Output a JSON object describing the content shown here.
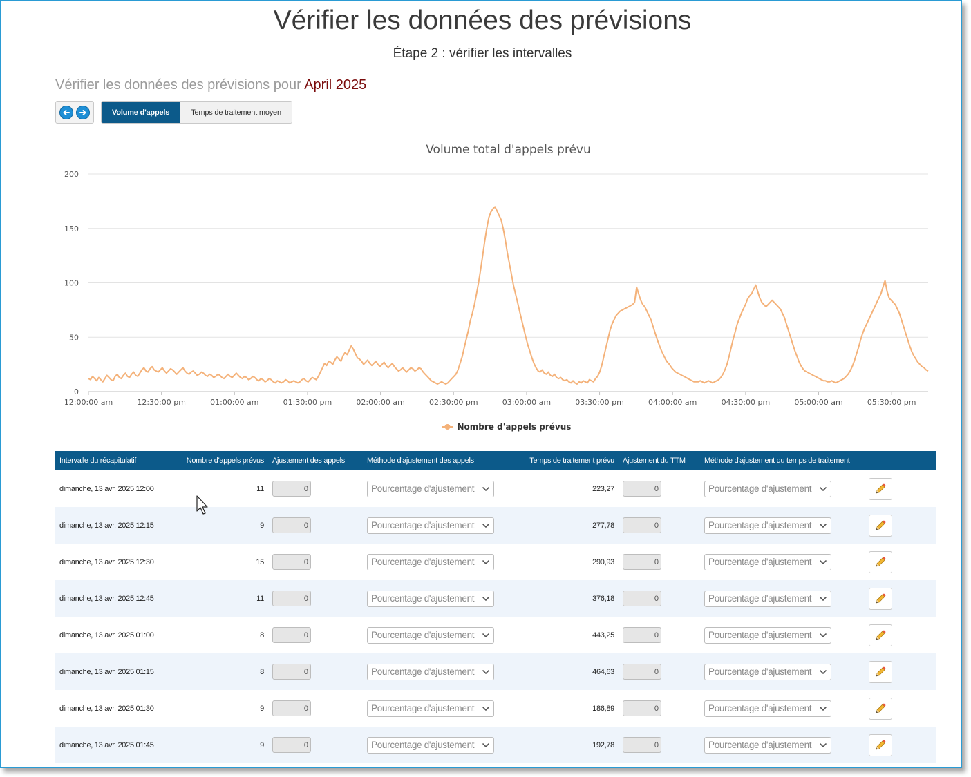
{
  "header": {
    "title": "Vérifier les données des prévisions",
    "step": "Étape 2 : vérifier les intervalles",
    "review_prefix": "Vérifier les données des prévisions pour",
    "review_month": "April 2025"
  },
  "nav": {
    "prev_icon": "arrow-left-circle-icon",
    "next_icon": "arrow-right-circle-icon"
  },
  "tabs": [
    {
      "label": "Volume d'appels",
      "active": true
    },
    {
      "label": "Temps de traitement moyen",
      "active": false
    }
  ],
  "colors": {
    "accent": "#0c5a8a",
    "series": "#f4b27a",
    "month": "#7a0c0c",
    "frame": "#2a9bd4"
  },
  "chart_data": {
    "type": "line",
    "title": "Volume total d'appels prévu",
    "xlabel": "",
    "ylabel": "",
    "ylim": [
      0,
      200
    ],
    "yticks": [
      0,
      50,
      100,
      150,
      200
    ],
    "xlim": [
      "12:00:00 am",
      "05:45:00 pm"
    ],
    "x_tick_labels": [
      "12:00:00 am",
      "12:30:00 pm",
      "01:00:00 am",
      "01:30:00 pm",
      "02:00:00 am",
      "02:30:00 pm",
      "03:00:00 am",
      "03:30:00 pm",
      "04:00:00 am",
      "04:30:00 pm",
      "05:00:00 am",
      "05:30:00 pm"
    ],
    "grid": true,
    "legend_position": "bottom-center",
    "series": [
      {
        "name": "Nombre d'appels prévus",
        "color": "#f4b27a",
        "values": [
          12,
          11,
          14,
          12,
          10,
          13,
          11,
          9,
          12,
          15,
          13,
          11,
          10,
          14,
          16,
          13,
          12,
          15,
          17,
          14,
          13,
          16,
          18,
          15,
          14,
          17,
          20,
          22,
          19,
          18,
          21,
          23,
          20,
          19,
          18,
          20,
          22,
          19,
          17,
          19,
          21,
          20,
          18,
          16,
          18,
          20,
          22,
          19,
          17,
          16,
          18,
          19,
          17,
          15,
          16,
          18,
          17,
          15,
          14,
          16,
          15,
          13,
          14,
          16,
          15,
          13,
          12,
          14,
          16,
          14,
          13,
          15,
          17,
          15,
          13,
          12,
          14,
          13,
          11,
          12,
          14,
          13,
          11,
          10,
          12,
          11,
          9,
          10,
          12,
          11,
          9,
          8,
          10,
          9,
          8,
          9,
          11,
          10,
          8,
          9,
          10,
          9,
          8,
          9,
          11,
          12,
          10,
          9,
          11,
          13,
          12,
          11,
          14,
          18,
          22,
          26,
          24,
          28,
          27,
          25,
          29,
          32,
          30,
          28,
          33,
          36,
          34,
          38,
          42,
          39,
          35,
          31,
          30,
          28,
          25,
          27,
          29,
          26,
          24,
          26,
          28,
          25,
          23,
          25,
          27,
          24,
          22,
          24,
          26,
          23,
          21,
          19,
          20,
          22,
          20,
          18,
          20,
          22,
          21,
          19,
          20,
          22,
          21,
          18,
          16,
          14,
          12,
          10,
          9,
          8,
          7,
          8,
          9,
          8,
          7,
          8,
          10,
          12,
          14,
          16,
          20,
          26,
          32,
          40,
          48,
          56,
          65,
          72,
          80,
          90,
          100,
          112,
          125,
          138,
          150,
          160,
          165,
          168,
          170,
          166,
          162,
          158,
          150,
          140,
          128,
          118,
          108,
          98,
          90,
          82,
          74,
          66,
          58,
          50,
          43,
          37,
          31,
          26,
          22,
          19,
          18,
          20,
          17,
          16,
          18,
          15,
          14,
          16,
          13,
          12,
          13,
          11,
          10,
          11,
          9,
          8,
          10,
          8,
          7,
          9,
          8,
          10,
          9,
          8,
          11,
          10,
          9,
          12,
          14,
          18,
          24,
          32,
          40,
          48,
          56,
          62,
          66,
          70,
          72,
          74,
          75,
          76,
          77,
          78,
          79,
          80,
          82,
          96,
          90,
          84,
          80,
          78,
          74,
          70,
          66,
          60,
          54,
          48,
          43,
          38,
          34,
          30,
          27,
          25,
          22,
          20,
          18,
          17,
          16,
          15,
          14,
          13,
          12,
          11,
          10,
          9,
          9,
          9,
          10,
          9,
          8,
          9,
          10,
          9,
          8,
          9,
          10,
          11,
          13,
          16,
          20,
          25,
          32,
          40,
          48,
          55,
          62,
          67,
          72,
          76,
          80,
          85,
          88,
          90,
          94,
          98,
          92,
          86,
          82,
          80,
          78,
          80,
          82,
          84,
          82,
          80,
          78,
          76,
          72,
          68,
          62,
          56,
          50,
          44,
          38,
          33,
          28,
          24,
          21,
          19,
          18,
          17,
          16,
          15,
          14,
          13,
          12,
          11,
          10,
          10,
          9,
          9,
          10,
          9,
          8,
          9,
          10,
          11,
          12,
          14,
          16,
          19,
          23,
          28,
          34,
          40,
          47,
          53,
          58,
          62,
          66,
          70,
          74,
          78,
          82,
          86,
          90,
          96,
          102,
          92,
          86,
          84,
          82,
          80,
          76,
          72,
          66,
          60,
          54,
          48,
          42,
          37,
          33,
          30,
          27,
          25,
          23,
          22,
          20,
          19
        ]
      }
    ]
  },
  "table": {
    "headers": [
      "Intervalle du récapitulatif",
      "Nombre d'appels prévus",
      "Ajustement des appels",
      "Méthode d'ajustement des appels",
      "Temps de traitement prévu",
      "Ajustement du TTM",
      "Méthode d'ajustement du temps de traitement",
      ""
    ],
    "rows": [
      {
        "interval": "dimanche, 13 avr. 2025 12:00",
        "calls": "11",
        "call_adj": "0",
        "call_method": "Pourcentage d'ajustement",
        "aht": "223,27",
        "aht_adj": "0",
        "aht_method": "Pourcentage d'ajustement"
      },
      {
        "interval": "dimanche, 13 avr. 2025 12:15",
        "calls": "9",
        "call_adj": "0",
        "call_method": "Pourcentage d'ajustement",
        "aht": "277,78",
        "aht_adj": "0",
        "aht_method": "Pourcentage d'ajustement"
      },
      {
        "interval": "dimanche, 13 avr. 2025 12:30",
        "calls": "15",
        "call_adj": "0",
        "call_method": "Pourcentage d'ajustement",
        "aht": "290,93",
        "aht_adj": "0",
        "aht_method": "Pourcentage d'ajustement"
      },
      {
        "interval": "dimanche, 13 avr. 2025 12:45",
        "calls": "11",
        "call_adj": "0",
        "call_method": "Pourcentage d'ajustement",
        "aht": "376,18",
        "aht_adj": "0",
        "aht_method": "Pourcentage d'ajustement"
      },
      {
        "interval": "dimanche, 13 avr. 2025 01:00",
        "calls": "8",
        "call_adj": "0",
        "call_method": "Pourcentage d'ajustement",
        "aht": "443,25",
        "aht_adj": "0",
        "aht_method": "Pourcentage d'ajustement"
      },
      {
        "interval": "dimanche, 13 avr. 2025 01:15",
        "calls": "8",
        "call_adj": "0",
        "call_method": "Pourcentage d'ajustement",
        "aht": "464,63",
        "aht_adj": "0",
        "aht_method": "Pourcentage d'ajustement"
      },
      {
        "interval": "dimanche, 13 avr. 2025 01:30",
        "calls": "9",
        "call_adj": "0",
        "call_method": "Pourcentage d'ajustement",
        "aht": "186,89",
        "aht_adj": "0",
        "aht_method": "Pourcentage d'ajustement"
      },
      {
        "interval": "dimanche, 13 avr. 2025 01:45",
        "calls": "9",
        "call_adj": "0",
        "call_method": "Pourcentage d'ajustement",
        "aht": "192,78",
        "aht_adj": "0",
        "aht_method": "Pourcentage d'ajustement"
      }
    ],
    "row_icons": {
      "edit": "pencil-icon",
      "dropdown": "chevron-down-icon"
    }
  }
}
